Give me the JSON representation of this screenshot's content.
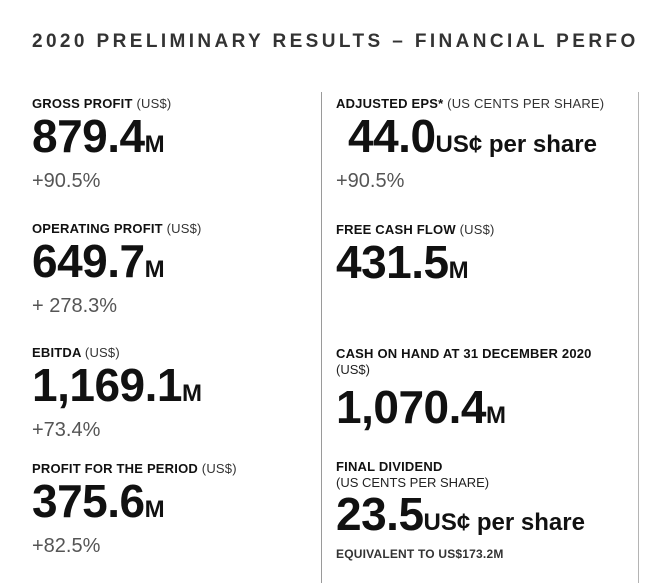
{
  "title": "2020 PRELIMINARY RESULTS – FINANCIAL PERFO",
  "left": [
    {
      "label": "GROSS PROFIT",
      "unit": "(US$)",
      "value": "879.4",
      "suffix": "M",
      "change": "+90.5%"
    },
    {
      "label": "OPERATING PROFIT",
      "unit": "(US$)",
      "value": "649.7",
      "suffix": "M",
      "change": "+ 278.3%"
    },
    {
      "label": "EBITDA",
      "unit": "(US$)",
      "value": "1,169.1",
      "suffix": "M",
      "change": "+73.4%"
    },
    {
      "label": "PROFIT FOR THE PERIOD",
      "unit": "(US$)",
      "value": "375.6",
      "suffix": "M",
      "change": "+82.5%"
    }
  ],
  "right": {
    "eps": {
      "label": "ADJUSTED EPS*",
      "unit": "(US CENTS PER SHARE)",
      "value": "44.0",
      "suffix": "US¢ per share",
      "change": "+90.5%"
    },
    "fcf": {
      "label": "FREE CASH FLOW",
      "unit": "(US$)",
      "value": "431.5",
      "suffix": "M"
    },
    "cash": {
      "label": "CASH ON HAND AT 31 DECEMBER 2020",
      "unit": "(US$)",
      "value": "1,070.4",
      "suffix": "M"
    },
    "dividend": {
      "label": "FINAL DIVIDEND",
      "unit": "(US CENTS PER SHARE)",
      "value": "23.5",
      "suffix": "US¢ per share",
      "note": "EQUIVALENT TO US$173.2M"
    }
  }
}
